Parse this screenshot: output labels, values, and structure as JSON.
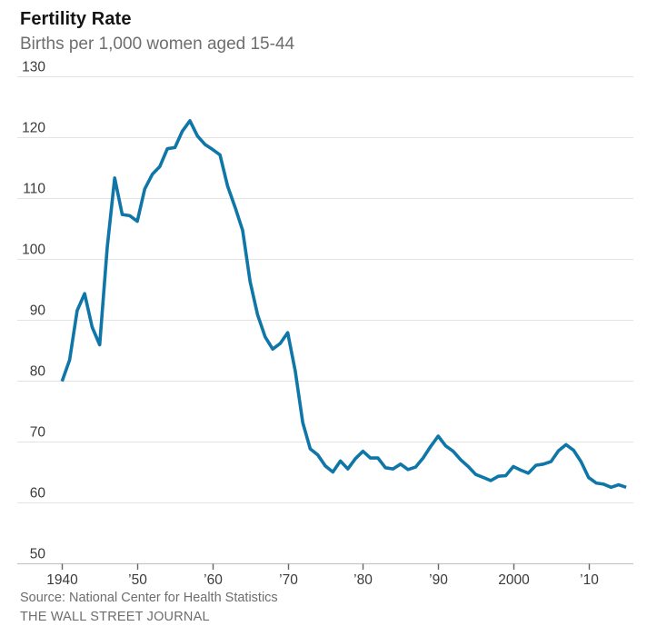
{
  "chart_data": {
    "type": "line",
    "title": "Fertility Rate",
    "subtitle": "Births per 1,000 women aged 15-44",
    "source": "Source: National Center for Health Statistics",
    "credit": "THE WALL STREET JOURNAL",
    "line_color": "#0f76a8",
    "grid": true,
    "legend": "none",
    "ylim": [
      50,
      130
    ],
    "y_ticks": [
      130,
      120,
      110,
      100,
      90,
      80,
      70,
      60,
      50
    ],
    "x_ticks": [
      {
        "year": 1940,
        "label": "1940"
      },
      {
        "year": 1950,
        "label": "’50"
      },
      {
        "year": 1960,
        "label": "’60"
      },
      {
        "year": 1970,
        "label": "’70"
      },
      {
        "year": 1980,
        "label": "’80"
      },
      {
        "year": 1990,
        "label": "’90"
      },
      {
        "year": 2000,
        "label": "2000"
      },
      {
        "year": 2010,
        "label": "’10"
      }
    ],
    "series": [
      {
        "name": "Births per 1,000 women aged 15-44",
        "x_start": 1940,
        "x_end": 2015,
        "values": [
          79.9,
          83.4,
          91.5,
          94.3,
          88.8,
          85.9,
          101.9,
          113.3,
          107.3,
          107.1,
          106.2,
          111.5,
          113.9,
          115.2,
          118.1,
          118.3,
          121.0,
          122.7,
          120.2,
          118.8,
          118.0,
          117.1,
          112.0,
          108.5,
          104.7,
          96.3,
          90.8,
          87.2,
          85.2,
          86.1,
          87.9,
          81.6,
          73.1,
          68.8,
          67.8,
          66.0,
          65.0,
          66.8,
          65.5,
          67.2,
          68.4,
          67.3,
          67.3,
          65.7,
          65.5,
          66.3,
          65.4,
          65.8,
          67.3,
          69.2,
          70.9,
          69.3,
          68.4,
          67.0,
          65.9,
          64.6,
          64.1,
          63.6,
          64.3,
          64.4,
          65.9,
          65.3,
          64.8,
          66.1,
          66.3,
          66.7,
          68.5,
          69.5,
          68.6,
          66.7,
          64.1,
          63.2,
          63.0,
          62.5,
          62.9,
          62.5
        ]
      }
    ]
  }
}
